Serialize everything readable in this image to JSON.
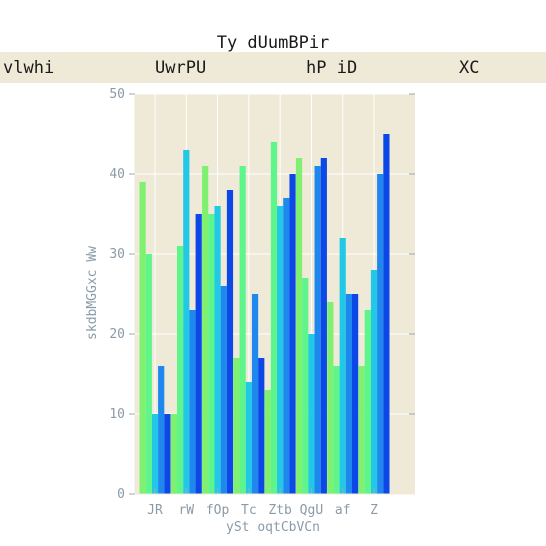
{
  "chart_data": {
    "type": "bar",
    "title": "Ty  dUumBPir",
    "xlabel": "ySt oqtCbVCn",
    "ylabel": "skdbMGGxc Ww",
    "ylim": [
      0,
      50
    ],
    "yticks": [
      "0",
      "10",
      "20",
      "30",
      "40",
      "50"
    ],
    "categories": [
      "JR",
      "rW",
      "fOp",
      "Tc",
      "Ztb",
      "QgU",
      "af",
      "Z"
    ],
    "legend_position": "top (full-width band)",
    "series": [
      {
        "name": "vlwhi",
        "color": "#80f070",
        "values": [
          39,
          10,
          41,
          17,
          13,
          42,
          24,
          16
        ]
      },
      {
        "name": "",
        "color": "#5ef58a",
        "values": [
          30,
          31,
          35,
          41,
          44,
          27,
          16,
          23
        ]
      },
      {
        "name": "UwrPU",
        "color": "#22c9e6",
        "values": [
          10,
          43,
          36,
          14,
          36,
          20,
          32,
          28
        ]
      },
      {
        "name": "hP iD",
        "color": "#1e88ee",
        "values": [
          16,
          23,
          26,
          25,
          37,
          41,
          25,
          40
        ]
      },
      {
        "name": "XC",
        "color": "#0c47e8",
        "values": [
          10,
          35,
          38,
          17,
          40,
          42,
          25,
          45
        ]
      }
    ],
    "plot_background": "#efe9d8",
    "grid": true
  }
}
